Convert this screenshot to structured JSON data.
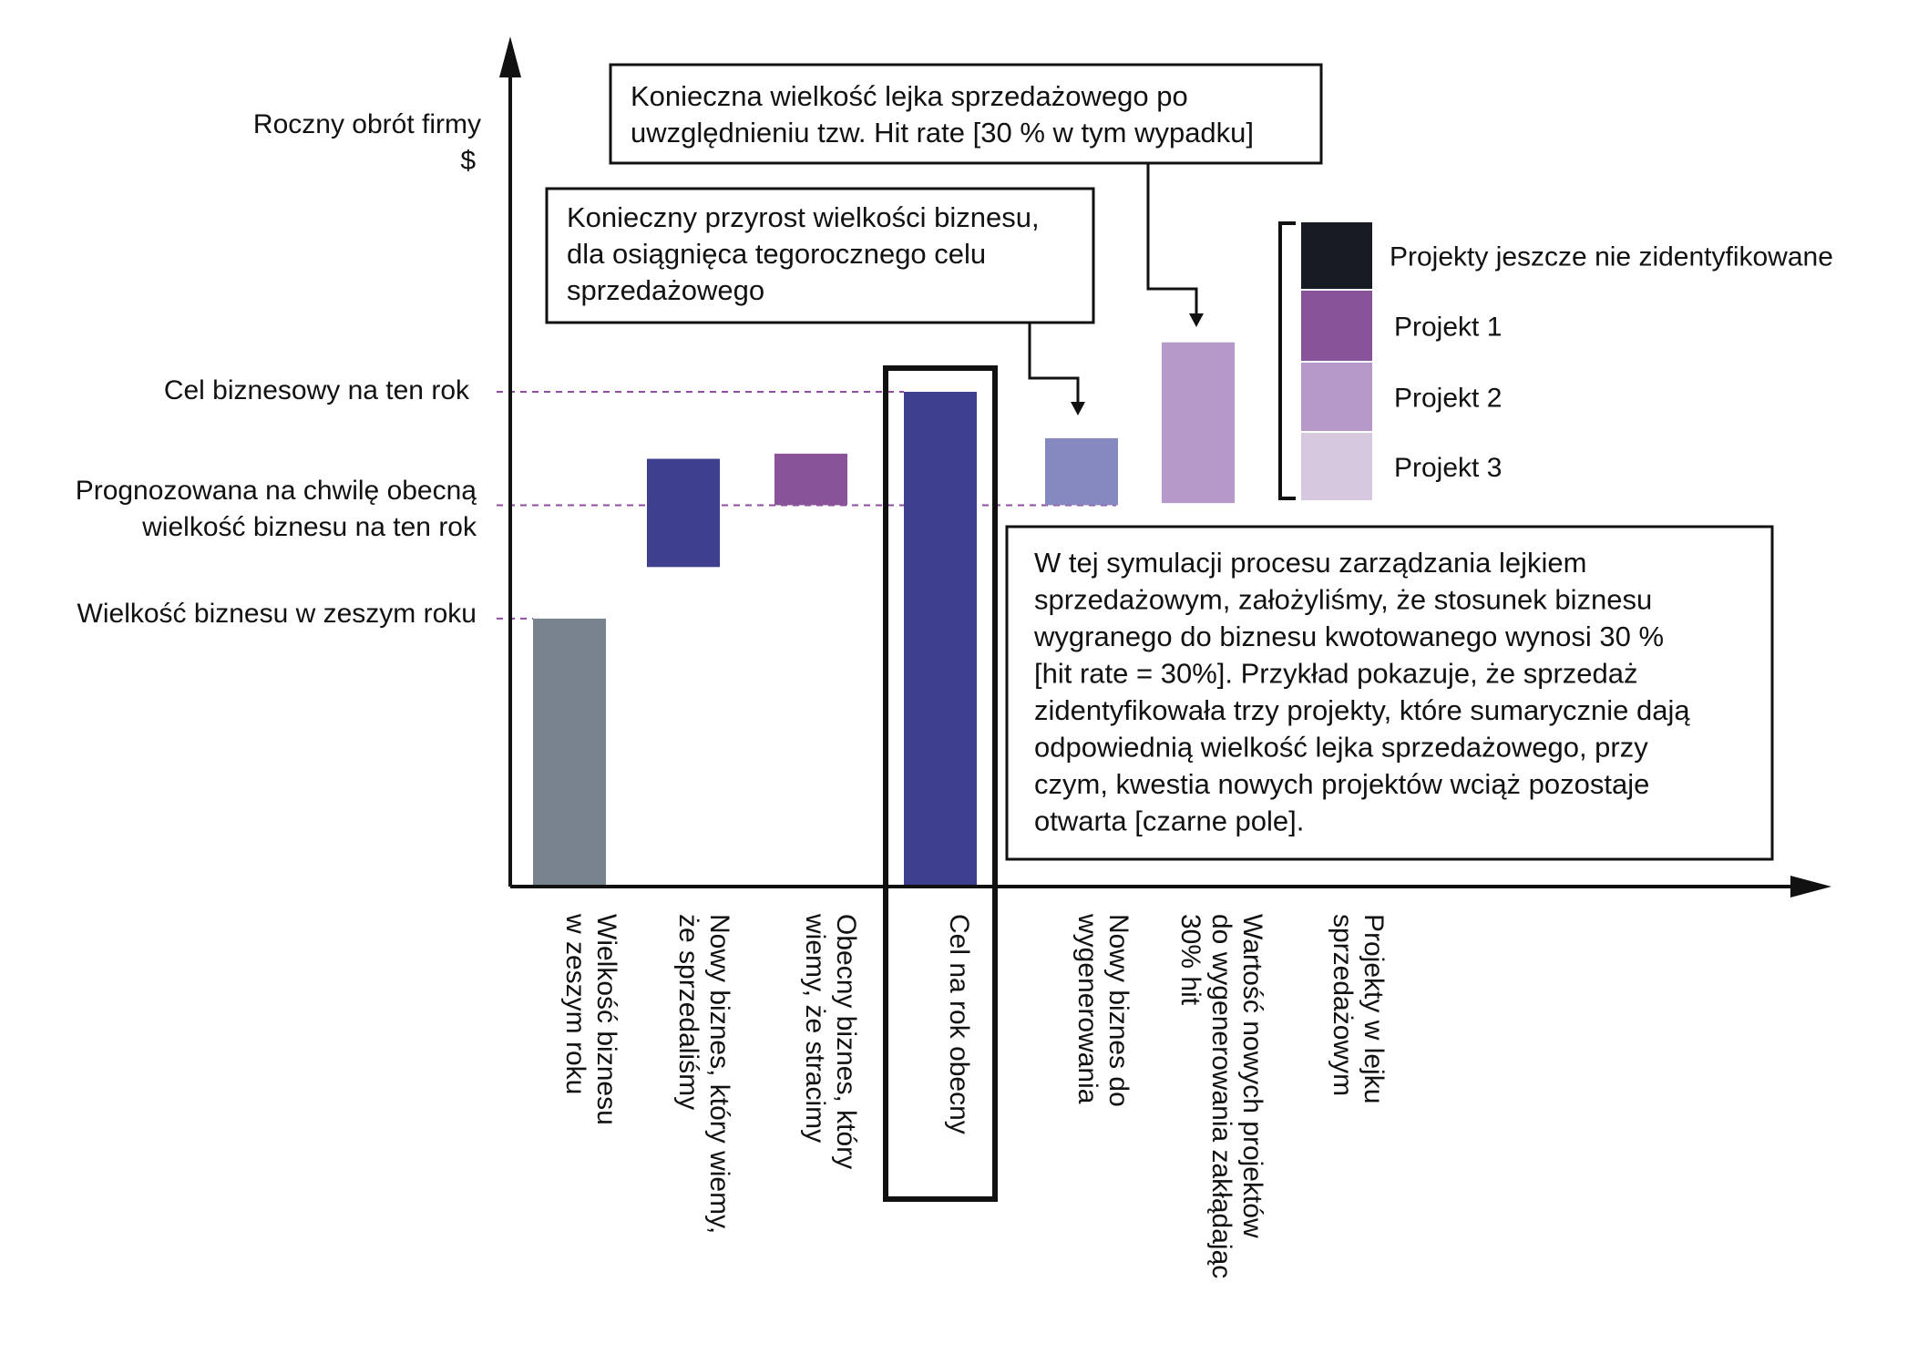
{
  "chart_data": {
    "type": "bar",
    "variant": "waterfall",
    "y_axis": {
      "title": "Roczny obrót firmy",
      "unit": "$",
      "reference_labels": [
        {
          "key": "target",
          "lines": [
            "Cel biznesowy na ten rok"
          ]
        },
        {
          "key": "forecast",
          "lines": [
            "Prognozowana na chwilę obecną",
            "wielkość biznesu na ten rok"
          ]
        },
        {
          "key": "last_year",
          "lines": [
            "Wielkość biznesu w zeszym roku"
          ]
        }
      ]
    },
    "ylim": [
      0,
      480
    ],
    "reference_values": {
      "last_year": 260,
      "forecast": 370,
      "target": 480
    },
    "categories": [
      {
        "label_lines": [
          "Wielkość biznesu",
          "w zeszym roku"
        ],
        "base": 0,
        "top": 260,
        "color": "#78838E"
      },
      {
        "label_lines": [
          "Nowy biznes, który wiemy,",
          "że sprzedaliśmy"
        ],
        "base": 310,
        "top": 415,
        "color": "#3E3F8F"
      },
      {
        "label_lines": [
          "Obecny biznes, który",
          "wiemy, że stracimy"
        ],
        "base": 370,
        "top": 420,
        "color": "#895399"
      },
      {
        "label_lines": [
          "Cel na rok obecny"
        ],
        "base": 0,
        "top": 480,
        "color": "#3E3F8F",
        "highlighted": true
      },
      {
        "label_lines": [
          "Nowy biznes do",
          "wygenerowania"
        ],
        "base": 370,
        "top": 435,
        "color": "#8589BF"
      },
      {
        "label_lines": [
          "Wartość nowych projektów",
          "do wygenerowania zakłądając",
          "30% hit"
        ],
        "base": 372,
        "top": 528,
        "color": "#B799C9"
      },
      {
        "label_lines": [
          "Projekty w lejku",
          "sprzedażowym"
        ],
        "stack": true
      }
    ],
    "stack_legend": [
      {
        "label": "Projekty jeszcze nie zidentyfikowane",
        "color": "#161B24"
      },
      {
        "label": "Projekt 1",
        "color": "#895399"
      },
      {
        "label": "Projekt 2",
        "color": "#B799C9"
      },
      {
        "label": "Projekt 3",
        "color": "#D6C8DF"
      }
    ],
    "callouts": [
      {
        "key": "growth",
        "lines": [
          "Konieczny przyrost wielkości biznesu,",
          "dla osiągnięca tegorocznego celu",
          "sprzedażowego"
        ]
      },
      {
        "key": "funnel",
        "lines": [
          "Konieczna wielkość lejka sprzedażowego po",
          "uwzględnieniu tzw. Hit rate [30 % w tym wypadku]"
        ]
      },
      {
        "key": "note",
        "lines": [
          "W tej symulacji procesu zarządzania lejkiem",
          "sprzedażowym, założyliśmy, że stosunek biznesu",
          "wygranego do biznesu kwotowanego wynosi 30 %",
          "[hit rate = 30%]. Przykład pokazuje, że sprzedaż",
          "zidentyfikowała trzy projekty, które sumarycznie dają",
          "odpowiednią wielkość lejka sprzedażowego, przy",
          "czym, kwestia nowych projektów wciąż pozostaje",
          "otwarta [czarne pole]."
        ]
      }
    ],
    "colors": {
      "axis": "#111111",
      "reference_line": "#8E4D9E",
      "highlight_frame": "#111111"
    },
    "legend": "right",
    "grid": false
  }
}
